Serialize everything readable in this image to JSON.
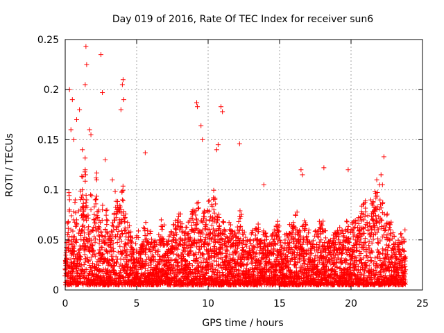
{
  "chart_data": {
    "type": "scatter",
    "title": "Day 019 of 2016, Rate Of TEC Index for receiver sun6",
    "xlabel": "GPS time / hours",
    "ylabel": "ROTI / TECUs",
    "xlim": [
      0,
      25
    ],
    "ylim": [
      0,
      0.25
    ],
    "xticks": [
      0,
      5,
      10,
      15,
      20,
      25
    ],
    "xtick_labels": [
      "0",
      "5",
      "10",
      "15",
      "20",
      "25"
    ],
    "yticks": [
      0,
      0.05,
      0.1,
      0.15,
      0.2,
      0.25
    ],
    "ytick_labels": [
      "0",
      "0.05",
      "0.1",
      "0.15",
      "0.2",
      "0.25"
    ],
    "grid": true,
    "marker": "+",
    "color": "#ff0000",
    "series": [
      {
        "x": [
          0.1,
          0.2,
          0.3,
          0.4,
          0.5,
          0.6,
          0.7,
          0.8,
          0.9,
          1.0,
          1.1,
          1.2,
          1.3,
          1.4,
          1.5,
          1.6,
          1.7,
          1.8,
          1.9,
          2.0,
          2.1,
          2.2,
          2.3,
          2.4,
          2.5,
          2.6,
          2.7,
          2.8,
          2.9,
          3.0,
          3.2,
          3.4,
          3.6,
          3.8,
          4.0,
          4.2,
          4.4,
          4.6,
          4.8,
          5.0,
          5.3,
          5.6,
          5.9,
          6.2,
          6.5,
          6.8,
          7.1,
          7.4,
          7.7,
          8.0,
          8.3,
          8.6,
          8.9,
          9.2,
          9.5,
          9.8,
          10.1,
          10.4,
          10.7,
          11.0,
          11.3,
          11.6,
          11.9,
          12.2,
          12.5,
          12.8,
          13.1,
          13.4,
          13.7,
          14.0,
          14.3,
          14.6,
          14.9,
          15.2,
          15.5,
          15.8,
          16.1,
          16.4,
          16.7,
          17.0,
          17.3,
          17.6,
          17.9,
          18.2,
          18.5,
          18.8,
          19.1,
          19.4,
          19.7,
          20.0,
          20.3,
          20.6,
          20.9,
          21.2,
          21.5,
          21.8,
          22.1,
          22.4,
          22.7,
          23.0,
          23.3,
          23.6,
          0.3,
          0.5,
          0.8,
          1.0,
          1.2,
          1.4,
          1.45,
          1.5,
          2.5,
          2.6,
          4.0,
          4.05,
          3.9,
          4.1,
          5.6,
          9.2,
          9.25,
          9.5,
          10.9,
          11.0,
          12.2,
          18.1,
          19.8,
          22.3,
          0.4,
          0.6,
          1.7,
          1.8,
          2.8,
          3.3,
          10.6,
          10.7,
          9.6,
          13.9,
          16.5,
          16.6,
          21.8,
          22.0,
          22.1,
          22.2
        ],
        "y": [
          0.03,
          0.05,
          0.08,
          0.06,
          0.04,
          0.07,
          0.09,
          0.05,
          0.03,
          0.06,
          0.08,
          0.1,
          0.07,
          0.12,
          0.09,
          0.06,
          0.05,
          0.08,
          0.04,
          0.07,
          0.09,
          0.11,
          0.06,
          0.05,
          0.04,
          0.08,
          0.03,
          0.06,
          0.07,
          0.05,
          0.04,
          0.06,
          0.08,
          0.07,
          0.09,
          0.06,
          0.05,
          0.04,
          0.03,
          0.04,
          0.03,
          0.05,
          0.04,
          0.03,
          0.04,
          0.05,
          0.03,
          0.04,
          0.05,
          0.06,
          0.04,
          0.05,
          0.06,
          0.07,
          0.05,
          0.06,
          0.07,
          0.08,
          0.06,
          0.05,
          0.04,
          0.05,
          0.04,
          0.06,
          0.04,
          0.03,
          0.04,
          0.05,
          0.03,
          0.04,
          0.03,
          0.04,
          0.05,
          0.03,
          0.04,
          0.05,
          0.06,
          0.04,
          0.05,
          0.04,
          0.03,
          0.04,
          0.05,
          0.04,
          0.03,
          0.04,
          0.05,
          0.04,
          0.05,
          0.06,
          0.05,
          0.06,
          0.07,
          0.06,
          0.07,
          0.08,
          0.07,
          0.06,
          0.05,
          0.04,
          0.03,
          0.04,
          0.2,
          0.19,
          0.17,
          0.18,
          0.14,
          0.205,
          0.243,
          0.225,
          0.235,
          0.197,
          0.205,
          0.21,
          0.18,
          0.19,
          0.137,
          0.187,
          0.183,
          0.164,
          0.183,
          0.178,
          0.146,
          0.122,
          0.12,
          0.133,
          0.16,
          0.15,
          0.16,
          0.155,
          0.13,
          0.11,
          0.14,
          0.145,
          0.15,
          0.105,
          0.12,
          0.115,
          0.11,
          0.105,
          0.115,
          0.105
        ]
      }
    ]
  }
}
